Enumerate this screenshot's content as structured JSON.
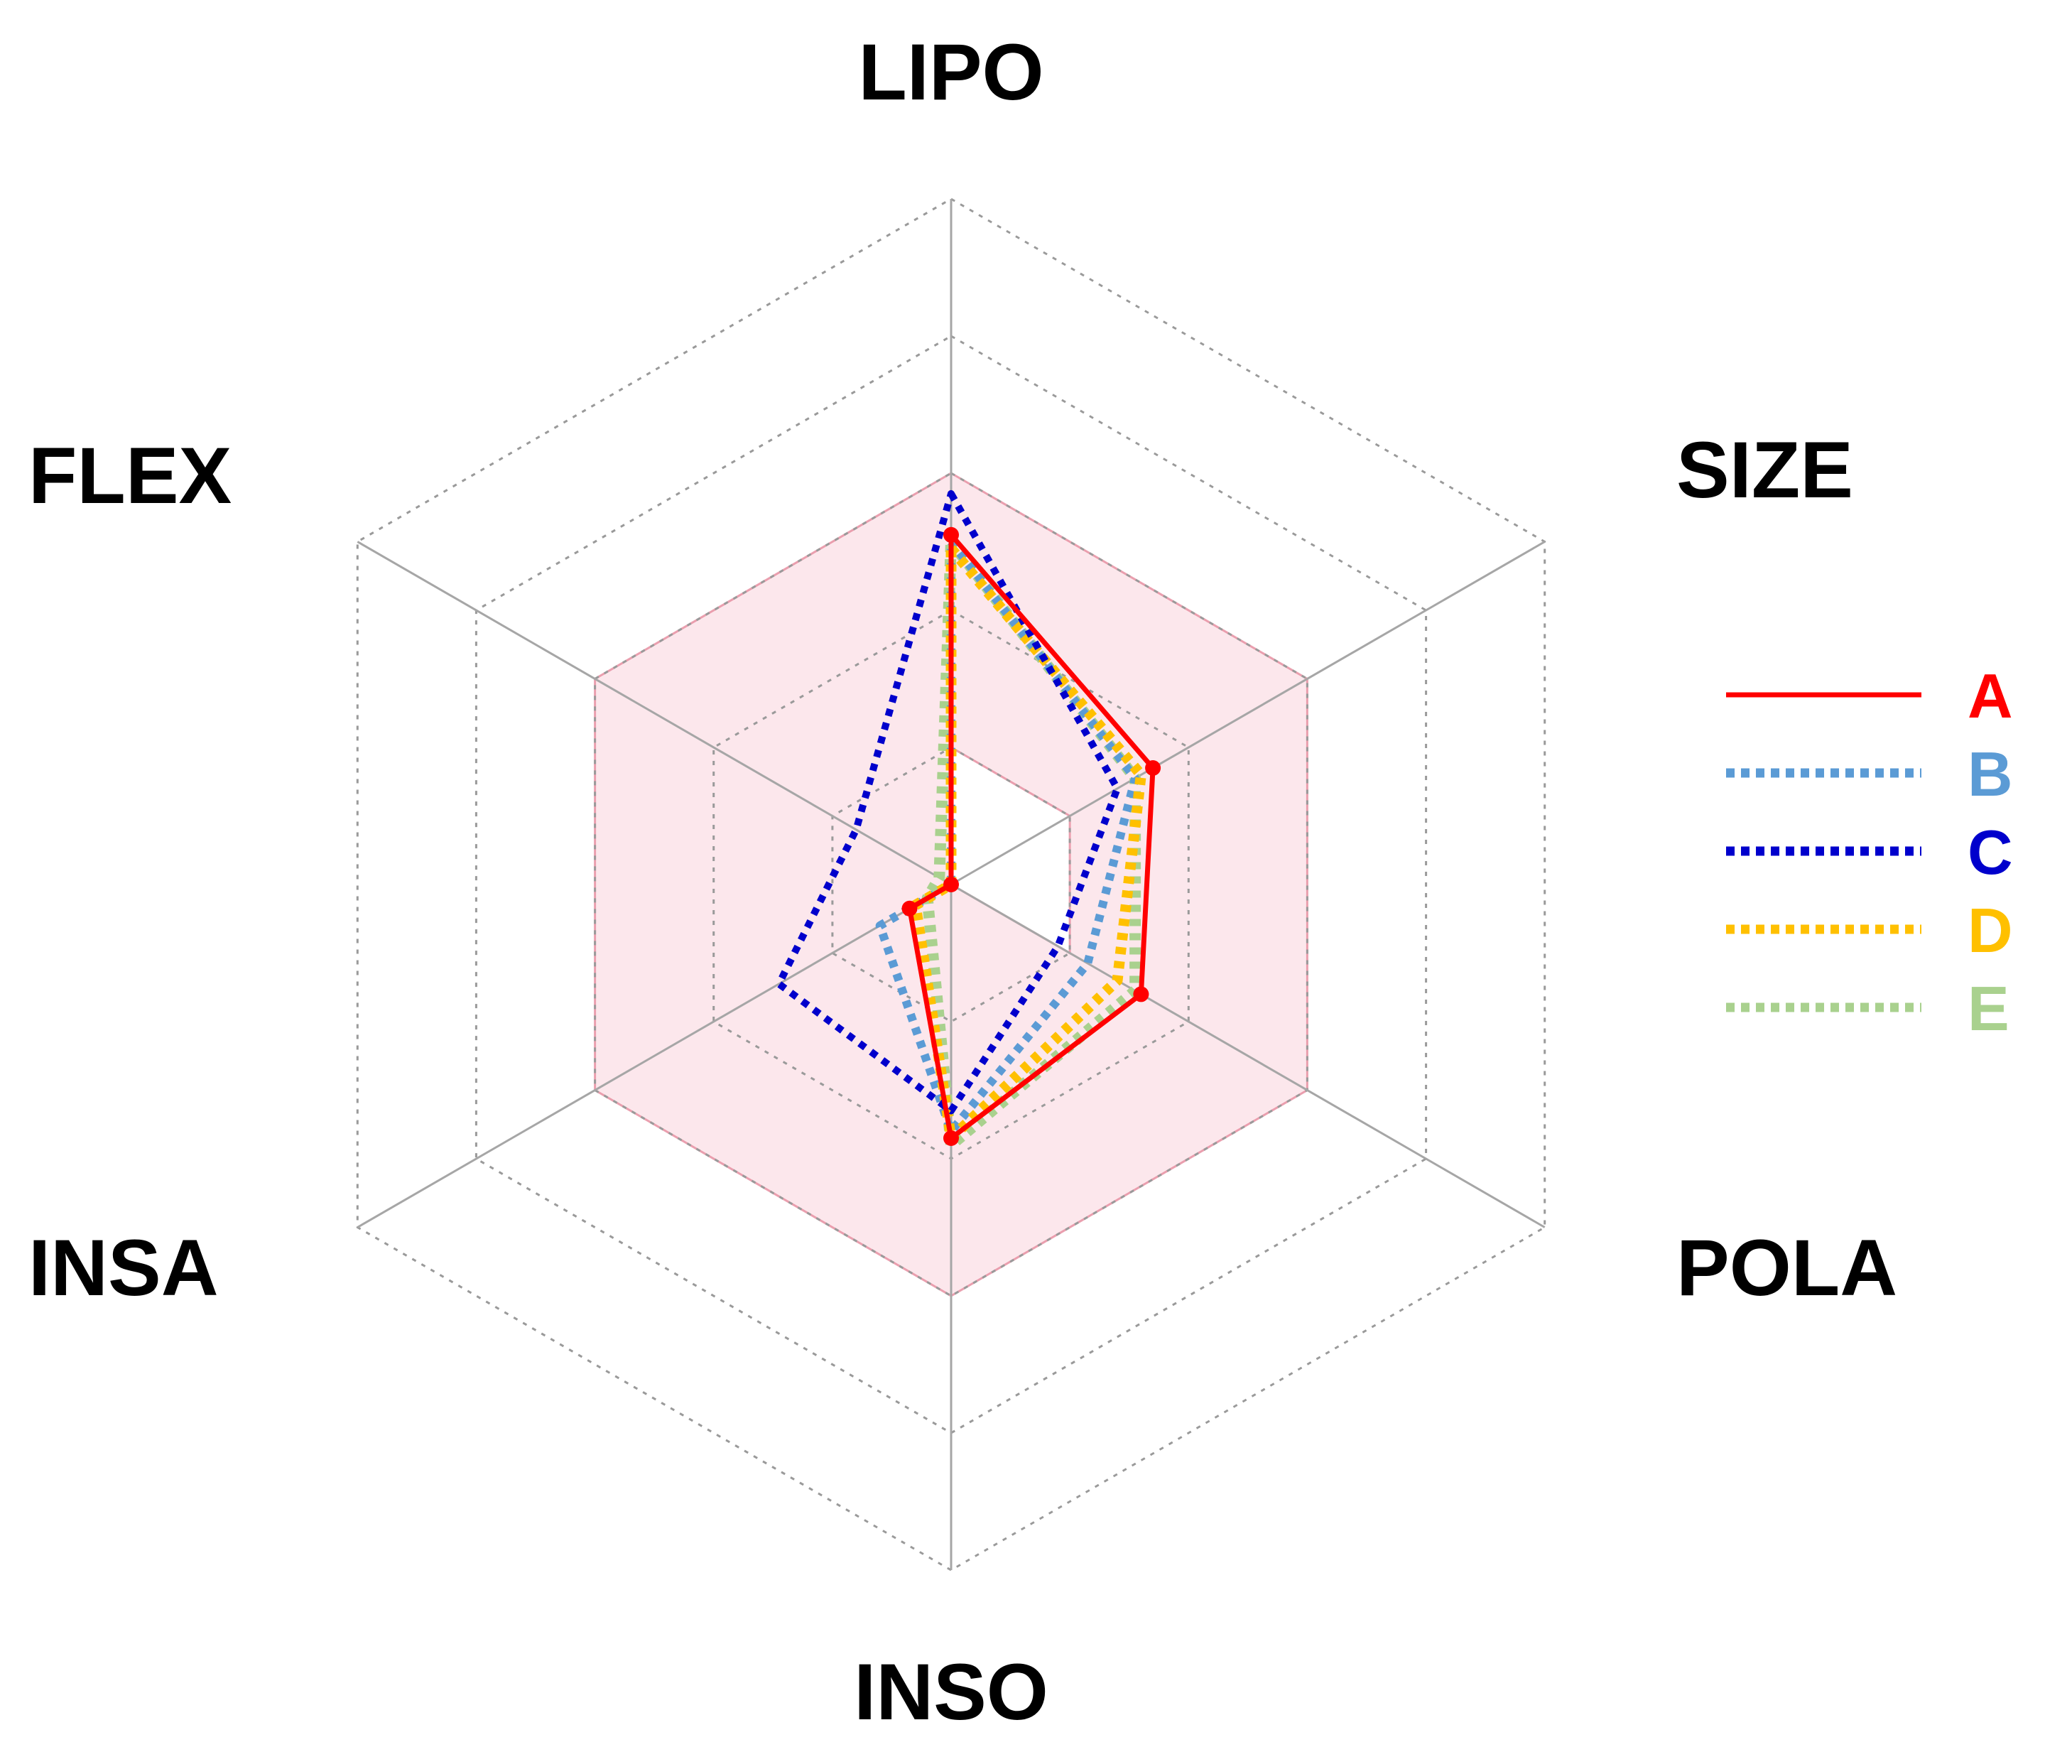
{
  "chart_data": {
    "type": "radar",
    "axes": [
      "LIPO",
      "SIZE",
      "POLA",
      "INSO",
      "INSA",
      "FLEX"
    ],
    "rmax": 5,
    "rings": [
      1,
      2,
      3,
      4,
      5
    ],
    "optimal_band": {
      "inner": [
        1,
        1,
        1,
        0,
        0,
        0
      ],
      "outer": [
        3,
        3,
        3,
        3,
        3,
        3
      ],
      "color": "#f9c9d4",
      "edge_color": "#e58a9c"
    },
    "grid": true,
    "legend_position": "right",
    "series": [
      {
        "name": "A",
        "color": "#ff0000",
        "style": "solid",
        "values": [
          2.55,
          1.7,
          1.6,
          1.85,
          0.35,
          0.0
        ]
      },
      {
        "name": "B",
        "color": "#5b9bd5",
        "style": "dotted",
        "values": [
          2.5,
          1.55,
          1.15,
          1.8,
          0.6,
          0.0
        ]
      },
      {
        "name": "C",
        "color": "#0000cc",
        "style": "dotted",
        "values": [
          2.85,
          1.4,
          0.9,
          1.65,
          1.45,
          0.8
        ]
      },
      {
        "name": "D",
        "color": "#ffc000",
        "style": "dotted",
        "values": [
          2.45,
          1.6,
          1.4,
          1.85,
          0.3,
          0.0
        ]
      },
      {
        "name": "E",
        "color": "#a9d18e",
        "style": "dotted",
        "values": [
          2.5,
          1.55,
          1.55,
          1.9,
          0.2,
          0.1
        ]
      }
    ]
  }
}
